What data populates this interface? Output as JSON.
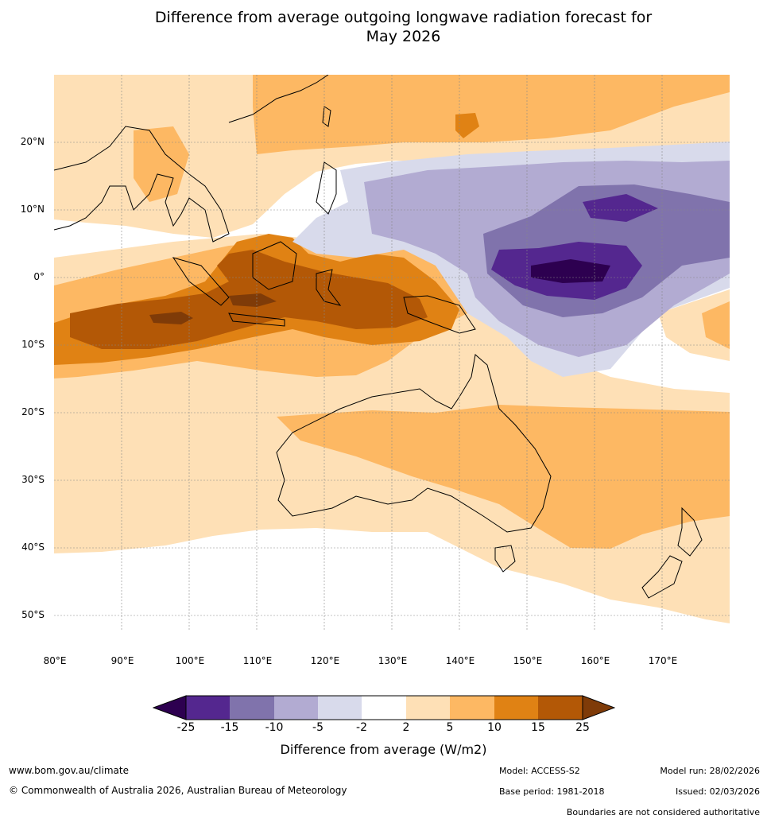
{
  "title_line1": "Difference from average outgoing longwave radiation forecast for",
  "title_line2": "May 2026",
  "map": {
    "region": "Australia, Maritime Continent and western Pacific",
    "lat_labels": [
      "20°N",
      "10°N",
      "0°",
      "10°S",
      "20°S",
      "30°S",
      "40°S",
      "50°S"
    ],
    "lon_labels": [
      "80°E",
      "90°E",
      "100°E",
      "110°E",
      "120°E",
      "130°E",
      "140°E",
      "150°E",
      "160°E",
      "170°E"
    ],
    "lat_values": [
      20,
      10,
      0,
      -10,
      -20,
      -30,
      -40,
      -50
    ],
    "lon_values": [
      80,
      90,
      100,
      110,
      120,
      130,
      140,
      150,
      160,
      170
    ],
    "extent": {
      "lon_min": 80,
      "lon_max": 180,
      "lat_min": -52,
      "lat_max": 30
    }
  },
  "legend": {
    "title": "Difference from average (W/m2)",
    "ticks": [
      "-25",
      "-15",
      "-10",
      "-5",
      "-2",
      "2",
      "5",
      "10",
      "15",
      "25"
    ],
    "colors": {
      "below_min": "#2d0050",
      "c1": "#54278f",
      "c2": "#8073ac",
      "c3": "#b2abd2",
      "c4": "#d8daeb",
      "c5": "#ffffff",
      "c6": "#fee0b6",
      "c7": "#fdb863",
      "c8": "#e08214",
      "c9": "#b35806",
      "above_max": "#7f3b08"
    }
  },
  "footer": {
    "website": "www.bom.gov.au/climate",
    "copyright": "© Commonwealth of Australia 2026, Australian Bureau of Meteorology",
    "model": "Model: ACCESS-S2",
    "base_period": "Base period: 1981-2018",
    "model_run": "Model run: 28/02/2026",
    "issued": "Issued: 02/03/2026",
    "disclaimer": "Boundaries are not considered authoritative"
  }
}
